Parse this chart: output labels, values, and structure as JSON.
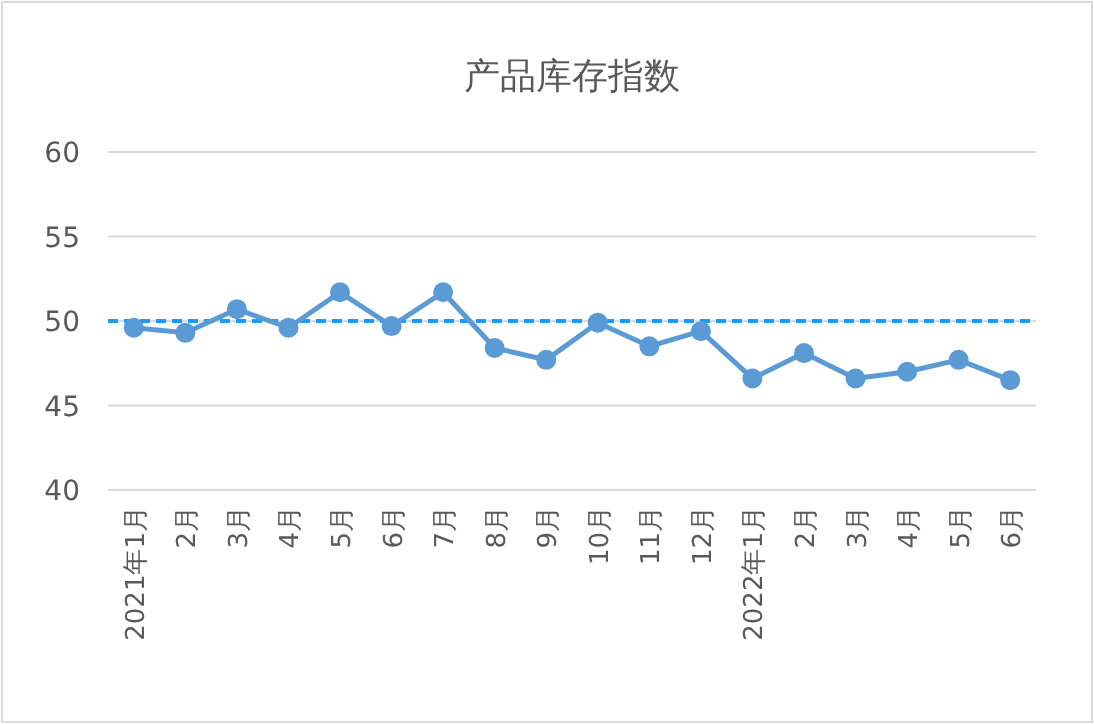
{
  "chart_data": {
    "type": "line",
    "title": "产品库存指数",
    "categories": [
      "2021年1月",
      "2月",
      "3月",
      "4月",
      "5月",
      "6月",
      "7月",
      "8月",
      "9月",
      "10月",
      "11月",
      "12月",
      "2022年1月",
      "2月",
      "3月",
      "4月",
      "5月",
      "6月"
    ],
    "series": [
      {
        "color": "#5b9bd5",
        "values": [
          49.6,
          49.3,
          50.7,
          49.6,
          51.7,
          49.7,
          51.7,
          48.4,
          47.7,
          49.9,
          48.5,
          49.4,
          46.6,
          48.1,
          46.6,
          47.0,
          47.7,
          46.5
        ]
      }
    ],
    "ylim": [
      40,
      60
    ],
    "yticks": [
      40,
      45,
      50,
      55,
      60
    ],
    "grid": "y",
    "marker": "circle",
    "line_style": "solid",
    "ref_lines": [
      {
        "axis": "y",
        "value": 50,
        "color": "#1e9bf0",
        "line_style": "dashed"
      }
    ]
  }
}
